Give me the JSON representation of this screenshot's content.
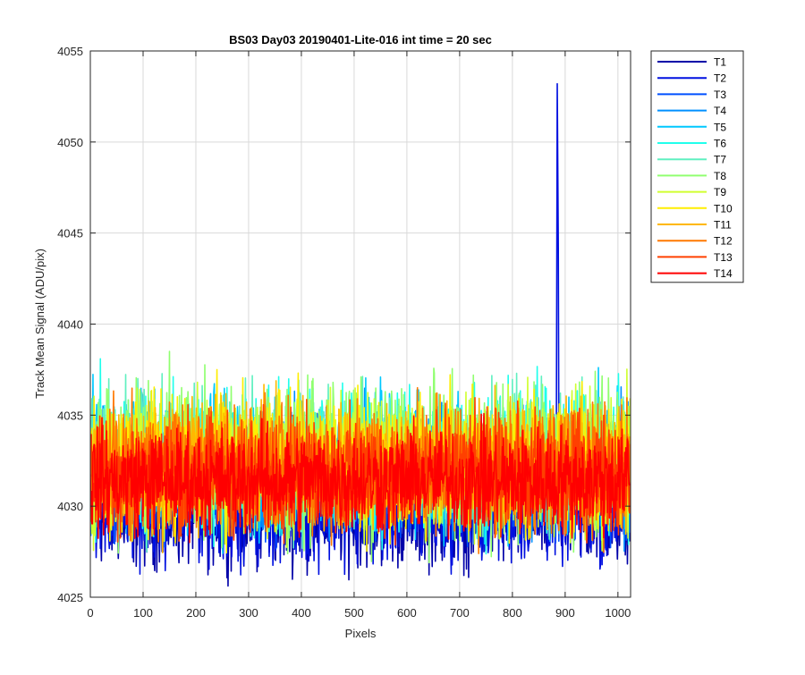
{
  "chart_data": {
    "type": "line",
    "title": "BS03 Day03 20190401-Lite-016 int time = 20 sec",
    "xlabel": "Pixels",
    "ylabel": "Track Mean Signal (ADU/pix)",
    "xlim": [
      0,
      1024
    ],
    "ylim": [
      4025,
      4055
    ],
    "x_ticks": [
      0,
      100,
      200,
      300,
      400,
      500,
      600,
      700,
      800,
      900,
      1000
    ],
    "y_ticks": [
      4025,
      4030,
      4035,
      4040,
      4045,
      4050,
      4055
    ],
    "grid": true,
    "legend_position": "outside-top-right",
    "series": [
      {
        "name": "T1",
        "color": "#0000a8",
        "base": 4029.6,
        "amp": 1.4
      },
      {
        "name": "T2",
        "color": "#0010e0",
        "base": 4029.8,
        "amp": 1.4,
        "spike": {
          "x": 885,
          "peak": 4053.2
        }
      },
      {
        "name": "T3",
        "color": "#0050ff",
        "base": 4031.6,
        "amp": 1.6
      },
      {
        "name": "T4",
        "color": "#0090ff",
        "base": 4032.0,
        "amp": 1.7
      },
      {
        "name": "T5",
        "color": "#00c8ff",
        "base": 4032.4,
        "amp": 1.8
      },
      {
        "name": "T6",
        "color": "#20ffec",
        "base": 4032.6,
        "amp": 1.9
      },
      {
        "name": "T7",
        "color": "#60f0c0",
        "base": 4032.6,
        "amp": 1.9
      },
      {
        "name": "T8",
        "color": "#90ff70",
        "base": 4032.6,
        "amp": 2.0,
        "max_point": {
          "x": 150,
          "y": 4038.5
        }
      },
      {
        "name": "T9",
        "color": "#d0ff30",
        "base": 4032.4,
        "amp": 1.9
      },
      {
        "name": "T10",
        "color": "#ffee00",
        "base": 4032.4,
        "amp": 1.8
      },
      {
        "name": "T11",
        "color": "#ffb800",
        "base": 4032.2,
        "amp": 1.7
      },
      {
        "name": "T12",
        "color": "#ff7800",
        "base": 4032.0,
        "amp": 1.7
      },
      {
        "name": "T13",
        "color": "#ff4000",
        "base": 4031.8,
        "amp": 1.6
      },
      {
        "name": "T14",
        "color": "#ff0000",
        "base": 4031.4,
        "amp": 1.4
      }
    ]
  }
}
